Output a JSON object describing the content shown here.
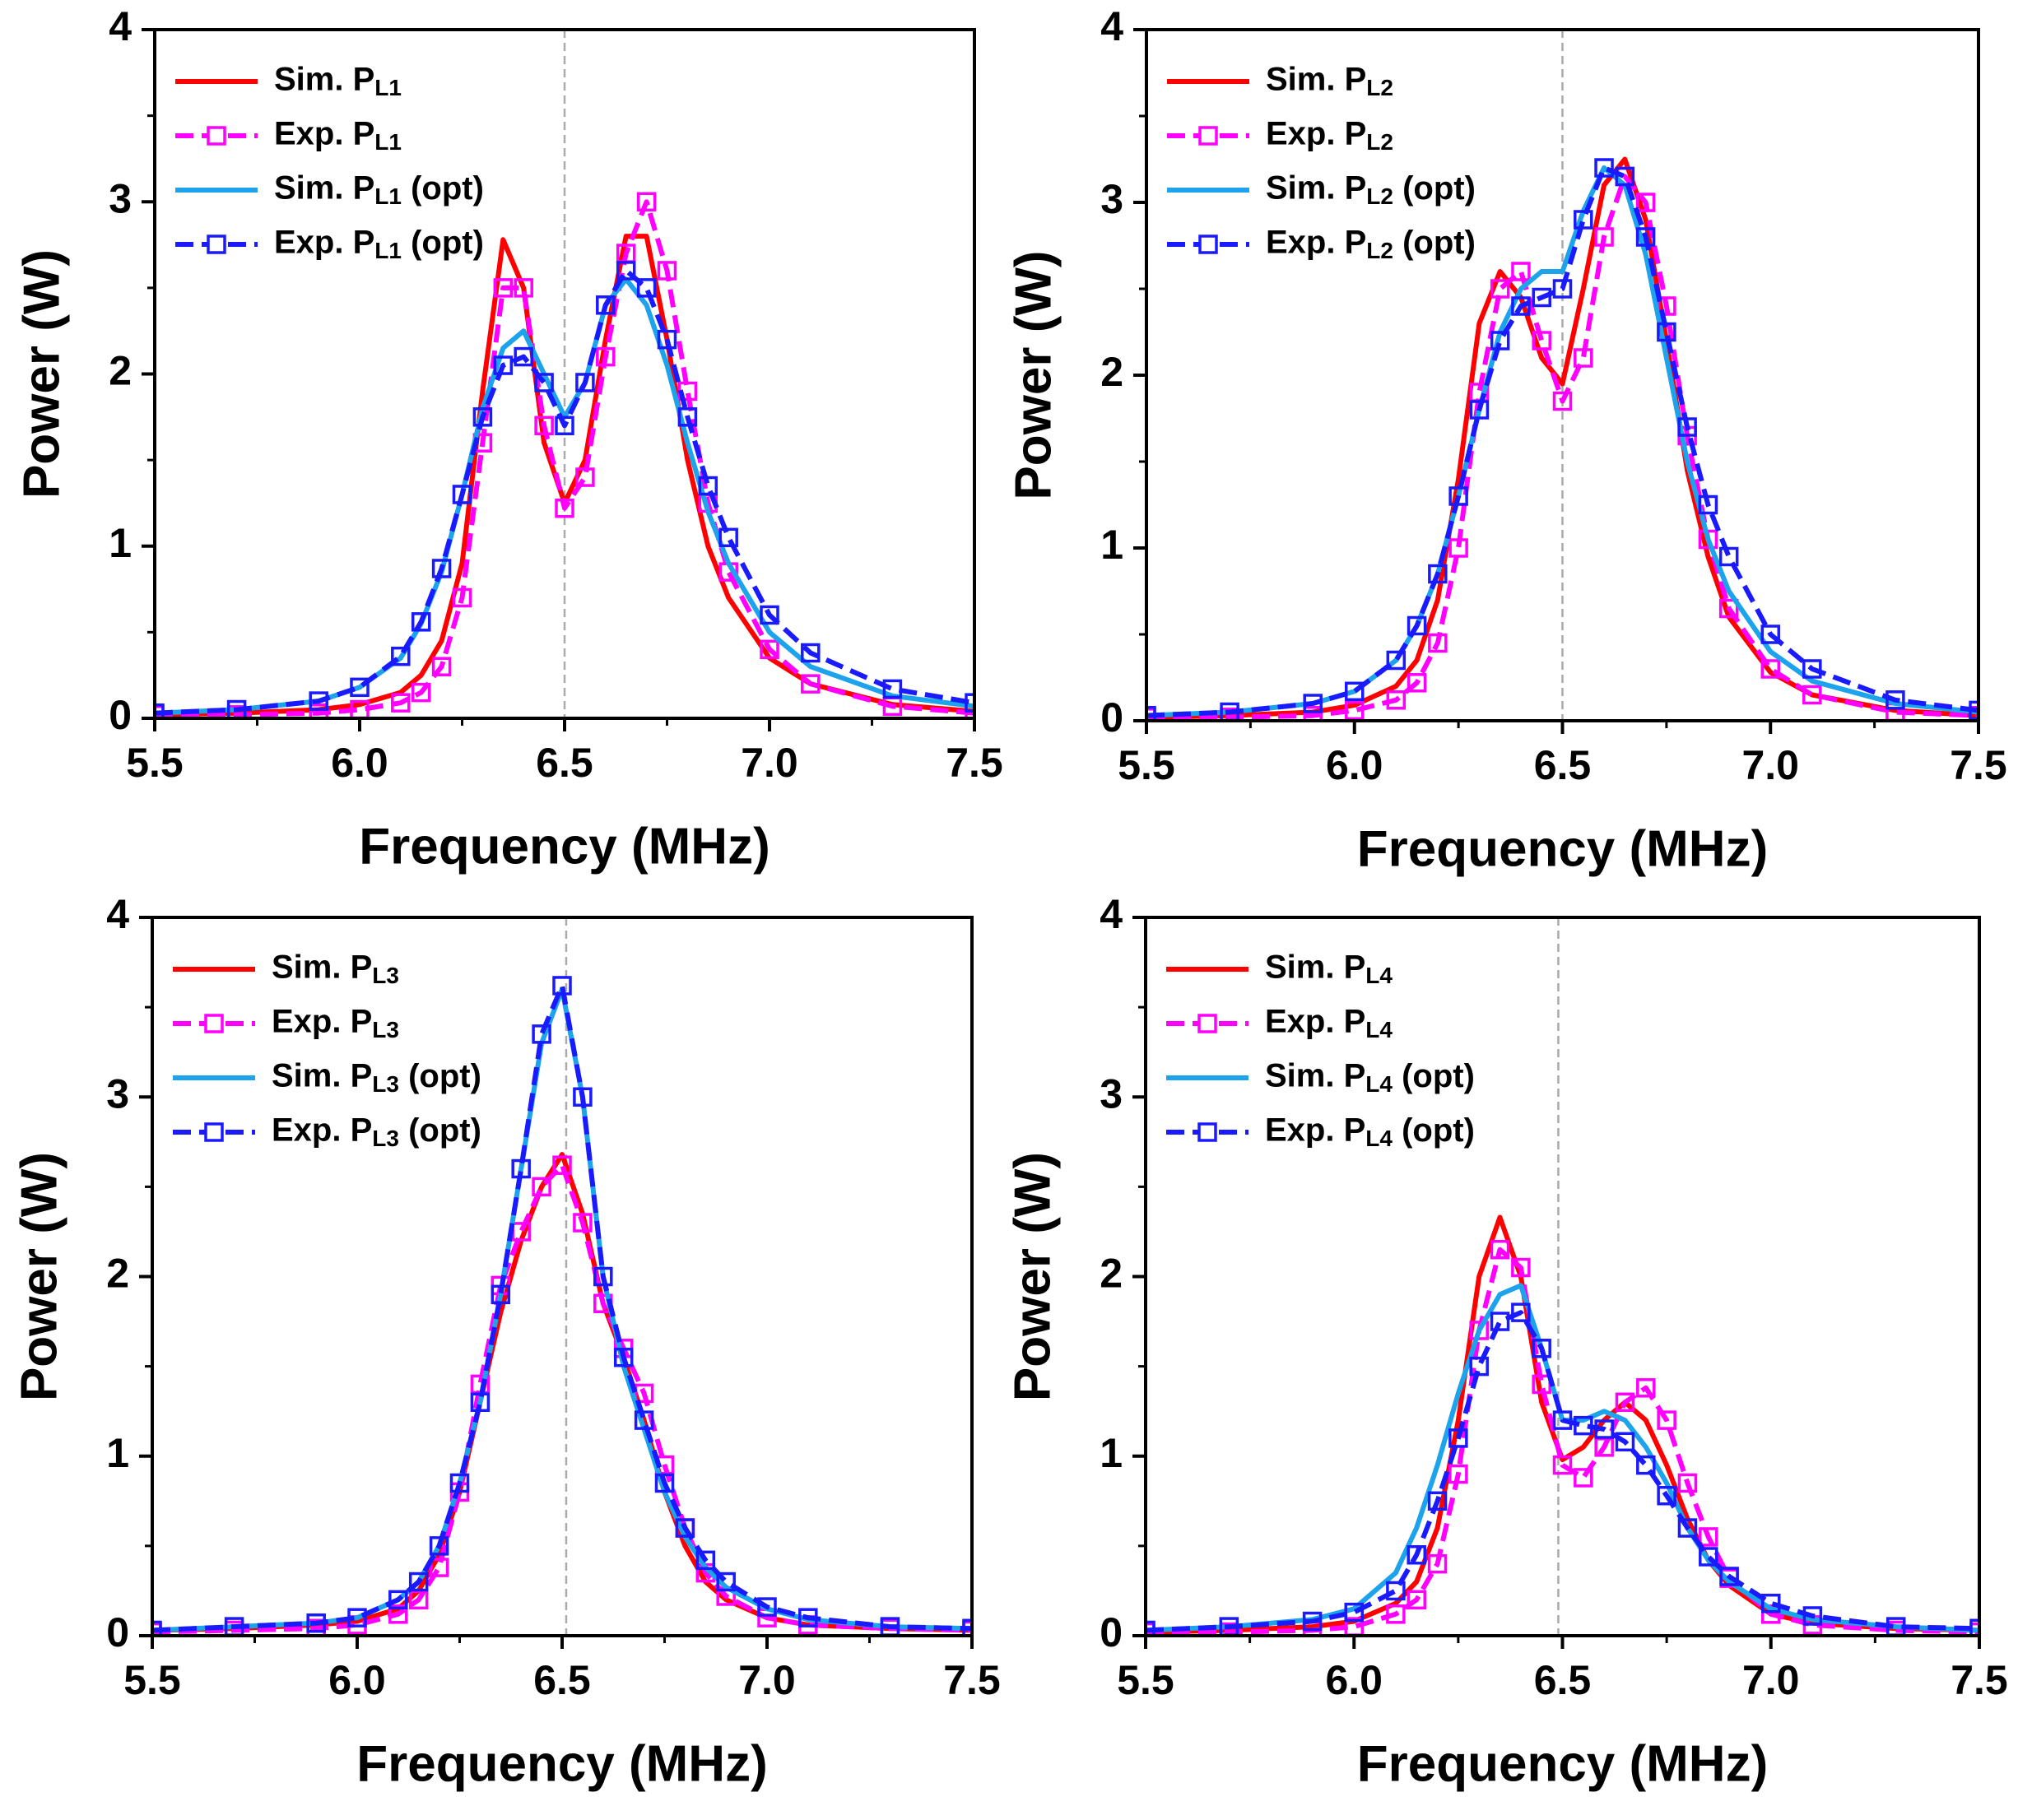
{
  "chart_data": [
    {
      "type": "line",
      "xlabel": "Frequency (MHz)",
      "ylabel": "Power (W)",
      "xlim": [
        5.5,
        7.5
      ],
      "xticks": [
        5.5,
        {
          "value": 6,
          "label": "6.0"
        },
        6.5,
        {
          "value": 7,
          "label": "7.0"
        },
        7.5
      ],
      "ylim": [
        0,
        4
      ],
      "yticks": [
        0,
        1,
        2,
        3,
        4
      ],
      "vline": 6.5,
      "legend": "upper left",
      "x": [
        5.5,
        5.7,
        5.9,
        6.0,
        6.1,
        6.15,
        6.2,
        6.25,
        6.3,
        6.35,
        6.4,
        6.45,
        6.5,
        6.55,
        6.6,
        6.65,
        6.7,
        6.75,
        6.8,
        6.85,
        6.9,
        7.0,
        7.1,
        7.3,
        7.5
      ],
      "series": [
        {
          "name": "Sim. PL1",
          "color": "#ff0000",
          "marker": false,
          "values": [
            0.02,
            0.03,
            0.05,
            0.08,
            0.15,
            0.25,
            0.45,
            0.9,
            1.9,
            2.78,
            2.5,
            1.6,
            1.25,
            1.5,
            2.2,
            2.8,
            2.8,
            2.2,
            1.5,
            1.0,
            0.7,
            0.35,
            0.2,
            0.08,
            0.04
          ]
        },
        {
          "name": "Exp. PL1",
          "color": "#ff00ff",
          "marker": true,
          "values": [
            0.02,
            0.02,
            0.03,
            0.05,
            0.09,
            0.15,
            0.3,
            0.7,
            1.6,
            2.5,
            2.5,
            1.7,
            1.22,
            1.4,
            2.1,
            2.7,
            3.0,
            2.6,
            1.9,
            1.25,
            0.85,
            0.4,
            0.2,
            0.07,
            0.03
          ]
        },
        {
          "name": "Sim. PL1 (opt)",
          "color": "#1ca3ec",
          "marker": false,
          "values": [
            0.03,
            0.05,
            0.1,
            0.18,
            0.35,
            0.55,
            0.85,
            1.3,
            1.8,
            2.15,
            2.25,
            2.0,
            1.75,
            1.95,
            2.4,
            2.55,
            2.4,
            2.05,
            1.6,
            1.2,
            0.9,
            0.5,
            0.3,
            0.13,
            0.07
          ]
        },
        {
          "name": "Exp. PL1 (opt)",
          "color": "#1a1aff",
          "marker": true,
          "values": [
            0.03,
            0.05,
            0.1,
            0.18,
            0.36,
            0.56,
            0.87,
            1.3,
            1.75,
            2.05,
            2.1,
            1.95,
            1.7,
            1.95,
            2.4,
            2.6,
            2.5,
            2.2,
            1.75,
            1.35,
            1.05,
            0.6,
            0.38,
            0.17,
            0.09
          ]
        }
      ]
    },
    {
      "type": "line",
      "xlabel": "Frequency (MHz)",
      "ylabel": "Power (W)",
      "xlim": [
        5.5,
        7.5
      ],
      "xticks": [
        5.5,
        {
          "value": 6,
          "label": "6.0"
        },
        6.5,
        {
          "value": 7,
          "label": "7.0"
        },
        7.5
      ],
      "ylim": [
        0,
        4
      ],
      "yticks": [
        0,
        1,
        2,
        3,
        4
      ],
      "vline": 6.5,
      "legend": "upper left",
      "x": [
        5.5,
        5.7,
        5.9,
        6.0,
        6.1,
        6.15,
        6.2,
        6.25,
        6.3,
        6.35,
        6.4,
        6.45,
        6.5,
        6.55,
        6.6,
        6.65,
        6.7,
        6.75,
        6.8,
        6.85,
        6.9,
        7.0,
        7.1,
        7.3,
        7.5
      ],
      "series": [
        {
          "name": "Sim. PL2",
          "color": "#ff0000",
          "marker": false,
          "values": [
            0.02,
            0.03,
            0.05,
            0.09,
            0.2,
            0.35,
            0.7,
            1.4,
            2.3,
            2.6,
            2.45,
            2.1,
            1.95,
            2.5,
            3.1,
            3.25,
            2.9,
            2.2,
            1.45,
            0.95,
            0.6,
            0.28,
            0.15,
            0.06,
            0.03
          ]
        },
        {
          "name": "Exp. PL2",
          "color": "#ff00ff",
          "marker": true,
          "values": [
            0.02,
            0.02,
            0.03,
            0.06,
            0.12,
            0.22,
            0.45,
            1.0,
            1.9,
            2.5,
            2.6,
            2.2,
            1.85,
            2.1,
            2.8,
            3.15,
            3.0,
            2.4,
            1.65,
            1.05,
            0.65,
            0.3,
            0.15,
            0.05,
            0.03
          ]
        },
        {
          "name": "Sim. PL2 (opt)",
          "color": "#1ca3ec",
          "marker": false,
          "values": [
            0.03,
            0.05,
            0.1,
            0.17,
            0.35,
            0.55,
            0.85,
            1.3,
            1.8,
            2.25,
            2.5,
            2.6,
            2.6,
            2.95,
            3.2,
            3.1,
            2.7,
            2.1,
            1.5,
            1.05,
            0.75,
            0.4,
            0.23,
            0.1,
            0.05
          ]
        },
        {
          "name": "Exp. PL2 (opt)",
          "color": "#1a1aff",
          "marker": true,
          "values": [
            0.03,
            0.05,
            0.1,
            0.17,
            0.35,
            0.55,
            0.85,
            1.3,
            1.8,
            2.2,
            2.4,
            2.45,
            2.5,
            2.9,
            3.2,
            3.15,
            2.8,
            2.25,
            1.7,
            1.25,
            0.95,
            0.5,
            0.3,
            0.12,
            0.06
          ]
        }
      ]
    },
    {
      "type": "line",
      "xlabel": "Frequency (MHz)",
      "ylabel": "Power (W)",
      "xlim": [
        5.5,
        7.5
      ],
      "xticks": [
        5.5,
        {
          "value": 6,
          "label": "6.0"
        },
        6.5,
        {
          "value": 7,
          "label": "7.0"
        },
        7.5
      ],
      "ylim": [
        0,
        4
      ],
      "yticks": [
        0,
        1,
        2,
        3,
        4
      ],
      "vline": 6.51,
      "legend": "upper left",
      "x": [
        5.5,
        5.7,
        5.9,
        6.0,
        6.1,
        6.15,
        6.2,
        6.25,
        6.3,
        6.35,
        6.4,
        6.45,
        6.5,
        6.55,
        6.6,
        6.65,
        6.7,
        6.75,
        6.8,
        6.85,
        6.9,
        7.0,
        7.1,
        7.3,
        7.5
      ],
      "series": [
        {
          "name": "Sim. PL3",
          "color": "#ff0000",
          "marker": false,
          "values": [
            0.03,
            0.04,
            0.06,
            0.08,
            0.15,
            0.25,
            0.45,
            0.8,
            1.3,
            1.8,
            2.2,
            2.5,
            2.68,
            2.35,
            1.85,
            1.55,
            1.2,
            0.8,
            0.5,
            0.3,
            0.2,
            0.1,
            0.06,
            0.04,
            0.03
          ]
        },
        {
          "name": "Exp. PL3",
          "color": "#ff00ff",
          "marker": true,
          "values": [
            0.02,
            0.03,
            0.04,
            0.06,
            0.12,
            0.2,
            0.38,
            0.8,
            1.4,
            1.95,
            2.25,
            2.5,
            2.62,
            2.3,
            1.85,
            1.6,
            1.35,
            0.95,
            0.6,
            0.35,
            0.22,
            0.1,
            0.06,
            0.04,
            0.03
          ]
        },
        {
          "name": "Sim. PL3 (opt)",
          "color": "#1ca3ec",
          "marker": false,
          "values": [
            0.03,
            0.05,
            0.07,
            0.1,
            0.2,
            0.3,
            0.5,
            0.85,
            1.3,
            1.9,
            2.6,
            3.3,
            3.6,
            3.0,
            2.0,
            1.5,
            1.15,
            0.8,
            0.55,
            0.38,
            0.27,
            0.15,
            0.09,
            0.05,
            0.04
          ]
        },
        {
          "name": "Exp. PL3 (opt)",
          "color": "#1a1aff",
          "marker": true,
          "values": [
            0.03,
            0.05,
            0.07,
            0.1,
            0.2,
            0.3,
            0.5,
            0.85,
            1.3,
            1.9,
            2.6,
            3.35,
            3.62,
            3.0,
            2.0,
            1.55,
            1.2,
            0.85,
            0.6,
            0.42,
            0.3,
            0.16,
            0.1,
            0.05,
            0.04
          ]
        }
      ]
    },
    {
      "type": "line",
      "xlabel": "Frequency (MHz)",
      "ylabel": "Power (W)",
      "xlim": [
        5.5,
        7.5
      ],
      "xticks": [
        5.5,
        {
          "value": 6,
          "label": "6.0"
        },
        6.5,
        {
          "value": 7,
          "label": "7.0"
        },
        7.5
      ],
      "ylim": [
        0,
        4
      ],
      "yticks": [
        0,
        1,
        2,
        3,
        4
      ],
      "vline": 6.49,
      "legend": "upper left",
      "x": [
        5.5,
        5.7,
        5.9,
        6.0,
        6.1,
        6.15,
        6.2,
        6.25,
        6.3,
        6.35,
        6.4,
        6.45,
        6.5,
        6.55,
        6.6,
        6.65,
        6.7,
        6.75,
        6.8,
        6.85,
        6.9,
        7.0,
        7.1,
        7.3,
        7.5
      ],
      "series": [
        {
          "name": "Sim. PL4",
          "color": "#ff0000",
          "marker": false,
          "values": [
            0.02,
            0.03,
            0.05,
            0.08,
            0.18,
            0.3,
            0.6,
            1.2,
            2.0,
            2.33,
            2.0,
            1.3,
            0.98,
            1.05,
            1.2,
            1.3,
            1.2,
            0.95,
            0.65,
            0.42,
            0.28,
            0.12,
            0.07,
            0.04,
            0.03
          ]
        },
        {
          "name": "Exp. PL4",
          "color": "#ff00ff",
          "marker": true,
          "values": [
            0.02,
            0.02,
            0.03,
            0.05,
            0.12,
            0.2,
            0.4,
            0.9,
            1.7,
            2.15,
            2.05,
            1.4,
            0.95,
            0.88,
            1.05,
            1.3,
            1.38,
            1.2,
            0.85,
            0.55,
            0.32,
            0.12,
            0.06,
            0.03,
            0.02
          ]
        },
        {
          "name": "Sim. PL4 (opt)",
          "color": "#1ca3ec",
          "marker": false,
          "values": [
            0.03,
            0.05,
            0.09,
            0.15,
            0.35,
            0.6,
            0.95,
            1.35,
            1.7,
            1.9,
            1.95,
            1.6,
            1.2,
            1.2,
            1.25,
            1.2,
            1.05,
            0.85,
            0.6,
            0.42,
            0.3,
            0.15,
            0.09,
            0.05,
            0.03
          ]
        },
        {
          "name": "Exp. PL4 (opt)",
          "color": "#1a1aff",
          "marker": true,
          "values": [
            0.03,
            0.05,
            0.08,
            0.13,
            0.25,
            0.45,
            0.75,
            1.1,
            1.5,
            1.75,
            1.8,
            1.6,
            1.2,
            1.17,
            1.15,
            1.08,
            0.95,
            0.78,
            0.6,
            0.44,
            0.33,
            0.18,
            0.11,
            0.05,
            0.04
          ]
        }
      ]
    }
  ]
}
